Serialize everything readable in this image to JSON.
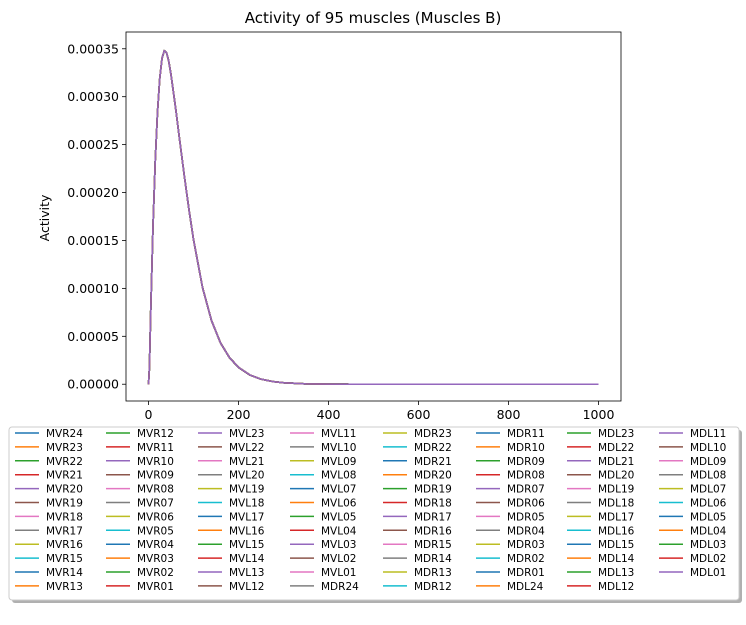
{
  "chart_data": {
    "type": "line",
    "title": "Activity of 95 muscles (Muscles B)",
    "xlabel": "",
    "ylabel": "Activity",
    "xlim": [
      -50,
      1050
    ],
    "ylim": [
      -1.75e-05,
      0.0003675
    ],
    "xticks": [
      0,
      200,
      400,
      600,
      800,
      1000
    ],
    "yticks": [
      0,
      5e-05,
      0.0001,
      0.00015,
      0.0002,
      0.00025,
      0.0003,
      0.00035
    ],
    "ytick_labels": [
      "0.00000",
      "0.00005",
      "0.00010",
      "0.00015",
      "0.00020",
      "0.00025",
      "0.00030",
      "0.00035"
    ],
    "grid": false,
    "legend_position": "below",
    "legend_columns": 8,
    "curve": {
      "x": [
        0,
        2,
        5,
        10,
        15,
        20,
        25,
        30,
        35,
        40,
        45,
        50,
        60,
        70,
        80,
        90,
        100,
        120,
        140,
        160,
        180,
        200,
        225,
        250,
        275,
        300,
        350,
        400,
        450,
        500,
        600,
        700,
        800,
        900,
        1000
      ],
      "y": [
        0.0,
        1.67e-05,
        7.71e-05,
        0.000165,
        0.000233,
        0.000284,
        0.000319,
        0.00034,
        0.000348,
        0.000346,
        0.000337,
        0.000323,
        0.000289,
        0.000252,
        0.000216,
        0.000182,
        0.000151,
        0.000101,
        6.64e-05,
        4.31e-05,
        2.77e-05,
        1.76e-05,
        9.7e-06,
        5.3e-06,
        2.9e-06,
        1.5e-06,
        4e-07,
        1e-07,
        0.0,
        0.0,
        0.0,
        0.0,
        0.0,
        0.0,
        0.0
      ]
    },
    "series": [
      {
        "name": "MVR24",
        "color": "#1f77b4"
      },
      {
        "name": "MVR23",
        "color": "#ff7f0e"
      },
      {
        "name": "MVR22",
        "color": "#2ca02c"
      },
      {
        "name": "MVR21",
        "color": "#d62728"
      },
      {
        "name": "MVR20",
        "color": "#9467bd"
      },
      {
        "name": "MVR19",
        "color": "#8c564b"
      },
      {
        "name": "MVR18",
        "color": "#e377c2"
      },
      {
        "name": "MVR17",
        "color": "#7f7f7f"
      },
      {
        "name": "MVR16",
        "color": "#bcbd22"
      },
      {
        "name": "MVR15",
        "color": "#17becf"
      },
      {
        "name": "MVR14",
        "color": "#1f77b4"
      },
      {
        "name": "MVR13",
        "color": "#ff7f0e"
      },
      {
        "name": "MVR12",
        "color": "#2ca02c"
      },
      {
        "name": "MVR11",
        "color": "#d62728"
      },
      {
        "name": "MVR10",
        "color": "#9467bd"
      },
      {
        "name": "MVR09",
        "color": "#8c564b"
      },
      {
        "name": "MVR08",
        "color": "#e377c2"
      },
      {
        "name": "MVR07",
        "color": "#7f7f7f"
      },
      {
        "name": "MVR06",
        "color": "#bcbd22"
      },
      {
        "name": "MVR05",
        "color": "#17becf"
      },
      {
        "name": "MVR04",
        "color": "#1f77b4"
      },
      {
        "name": "MVR03",
        "color": "#ff7f0e"
      },
      {
        "name": "MVR02",
        "color": "#2ca02c"
      },
      {
        "name": "MVR01",
        "color": "#d62728"
      },
      {
        "name": "MVL23",
        "color": "#9467bd"
      },
      {
        "name": "MVL22",
        "color": "#8c564b"
      },
      {
        "name": "MVL21",
        "color": "#e377c2"
      },
      {
        "name": "MVL20",
        "color": "#7f7f7f"
      },
      {
        "name": "MVL19",
        "color": "#bcbd22"
      },
      {
        "name": "MVL18",
        "color": "#17becf"
      },
      {
        "name": "MVL17",
        "color": "#1f77b4"
      },
      {
        "name": "MVL16",
        "color": "#ff7f0e"
      },
      {
        "name": "MVL15",
        "color": "#2ca02c"
      },
      {
        "name": "MVL14",
        "color": "#d62728"
      },
      {
        "name": "MVL13",
        "color": "#9467bd"
      },
      {
        "name": "MVL12",
        "color": "#8c564b"
      },
      {
        "name": "MVL11",
        "color": "#e377c2"
      },
      {
        "name": "MVL10",
        "color": "#7f7f7f"
      },
      {
        "name": "MVL09",
        "color": "#bcbd22"
      },
      {
        "name": "MVL08",
        "color": "#17becf"
      },
      {
        "name": "MVL07",
        "color": "#1f77b4"
      },
      {
        "name": "MVL06",
        "color": "#ff7f0e"
      },
      {
        "name": "MVL05",
        "color": "#2ca02c"
      },
      {
        "name": "MVL04",
        "color": "#d62728"
      },
      {
        "name": "MVL03",
        "color": "#9467bd"
      },
      {
        "name": "MVL02",
        "color": "#8c564b"
      },
      {
        "name": "MVL01",
        "color": "#e377c2"
      },
      {
        "name": "MDR24",
        "color": "#7f7f7f"
      },
      {
        "name": "MDR23",
        "color": "#bcbd22"
      },
      {
        "name": "MDR22",
        "color": "#17becf"
      },
      {
        "name": "MDR21",
        "color": "#1f77b4"
      },
      {
        "name": "MDR20",
        "color": "#ff7f0e"
      },
      {
        "name": "MDR19",
        "color": "#2ca02c"
      },
      {
        "name": "MDR18",
        "color": "#d62728"
      },
      {
        "name": "MDR17",
        "color": "#9467bd"
      },
      {
        "name": "MDR16",
        "color": "#8c564b"
      },
      {
        "name": "MDR15",
        "color": "#e377c2"
      },
      {
        "name": "MDR14",
        "color": "#7f7f7f"
      },
      {
        "name": "MDR13",
        "color": "#bcbd22"
      },
      {
        "name": "MDR12",
        "color": "#17becf"
      },
      {
        "name": "MDR11",
        "color": "#1f77b4"
      },
      {
        "name": "MDR10",
        "color": "#ff7f0e"
      },
      {
        "name": "MDR09",
        "color": "#2ca02c"
      },
      {
        "name": "MDR08",
        "color": "#d62728"
      },
      {
        "name": "MDR07",
        "color": "#9467bd"
      },
      {
        "name": "MDR06",
        "color": "#8c564b"
      },
      {
        "name": "MDR05",
        "color": "#e377c2"
      },
      {
        "name": "MDR04",
        "color": "#7f7f7f"
      },
      {
        "name": "MDR03",
        "color": "#bcbd22"
      },
      {
        "name": "MDR02",
        "color": "#17becf"
      },
      {
        "name": "MDR01",
        "color": "#1f77b4"
      },
      {
        "name": "MDL24",
        "color": "#ff7f0e"
      },
      {
        "name": "MDL23",
        "color": "#2ca02c"
      },
      {
        "name": "MDL22",
        "color": "#d62728"
      },
      {
        "name": "MDL21",
        "color": "#9467bd"
      },
      {
        "name": "MDL20",
        "color": "#8c564b"
      },
      {
        "name": "MDL19",
        "color": "#e377c2"
      },
      {
        "name": "MDL18",
        "color": "#7f7f7f"
      },
      {
        "name": "MDL17",
        "color": "#bcbd22"
      },
      {
        "name": "MDL16",
        "color": "#17becf"
      },
      {
        "name": "MDL15",
        "color": "#1f77b4"
      },
      {
        "name": "MDL14",
        "color": "#ff7f0e"
      },
      {
        "name": "MDL13",
        "color": "#2ca02c"
      },
      {
        "name": "MDL12",
        "color": "#d62728"
      },
      {
        "name": "MDL11",
        "color": "#9467bd"
      },
      {
        "name": "MDL10",
        "color": "#8c564b"
      },
      {
        "name": "MDL09",
        "color": "#e377c2"
      },
      {
        "name": "MDL08",
        "color": "#7f7f7f"
      },
      {
        "name": "MDL07",
        "color": "#bcbd22"
      },
      {
        "name": "MDL06",
        "color": "#17becf"
      },
      {
        "name": "MDL05",
        "color": "#1f77b4"
      },
      {
        "name": "MDL04",
        "color": "#ff7f0e"
      },
      {
        "name": "MDL03",
        "color": "#2ca02c"
      },
      {
        "name": "MDL02",
        "color": "#d62728"
      },
      {
        "name": "MDL01",
        "color": "#9467bd"
      }
    ]
  }
}
